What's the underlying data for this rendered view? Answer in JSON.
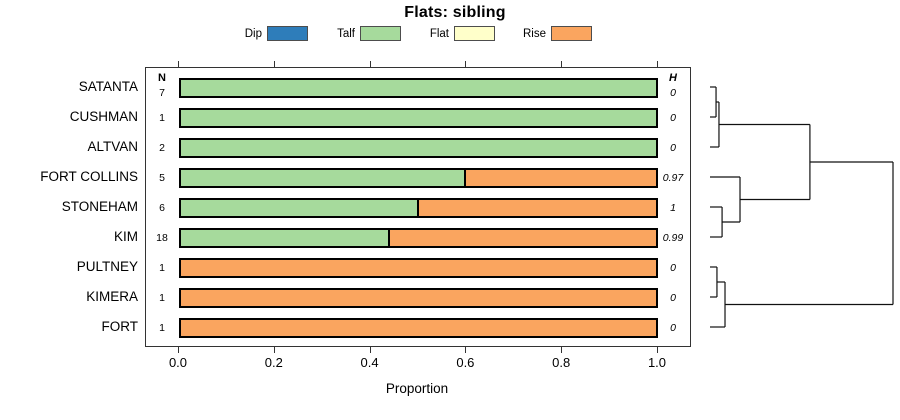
{
  "title": "Flats: sibling",
  "legend": {
    "items": [
      {
        "label": "Dip",
        "color": "#2e7dba"
      },
      {
        "label": "Talf",
        "color": "#a6da9c"
      },
      {
        "label": "Flat",
        "color": "#ffffca"
      },
      {
        "label": "Rise",
        "color": "#faa55f"
      }
    ]
  },
  "chart_data": {
    "type": "bar",
    "subtype": "horizontal-stacked-proportion",
    "title": "Flats: sibling",
    "categories": [
      "SATANTA",
      "CUSHMAN",
      "ALTVAN",
      "FORT COLLINS",
      "STONEHAM",
      "KIM",
      "PULTNEY",
      "KIMERA",
      "FORT"
    ],
    "n_header": "N",
    "h_header": "H",
    "n_values": [
      7,
      1,
      2,
      5,
      6,
      18,
      1,
      1,
      1
    ],
    "h_values": [
      "0",
      "0",
      "0",
      "0.97",
      "1",
      "0.99",
      "0",
      "0",
      "0"
    ],
    "series": [
      {
        "name": "Talf",
        "color": "#a6da9c",
        "values": [
          1,
          1,
          1,
          0.6,
          0.5,
          0.44,
          0,
          0,
          0
        ]
      },
      {
        "name": "Rise",
        "color": "#faa55f",
        "values": [
          0,
          0,
          0,
          0.4,
          0.5,
          0.56,
          1,
          1,
          1
        ]
      }
    ],
    "xlabel": "Proportion",
    "xlim": [
      0,
      1
    ],
    "xticks": [
      "0.0",
      "0.2",
      "0.4",
      "0.6",
      "0.8",
      "1.0"
    ],
    "legend_position": "top",
    "grid": false
  },
  "dendrogram": {
    "orientation": "right",
    "leaf_order": [
      "SATANTA",
      "CUSHMAN",
      "ALTVAN",
      "FORT COLLINS",
      "STONEHAM",
      "KIM",
      "PULTNEY",
      "KIMERA",
      "FORT"
    ],
    "tree": {
      "h": 1,
      "children": [
        {
          "h": 0.546,
          "children": [
            {
              "h": 0.049,
              "children": [
                {
                  "h": 0.033,
                  "children": [
                    {
                      "leaf": 0
                    },
                    {
                      "leaf": 1
                    }
                  ]
                },
                {
                  "leaf": 2
                }
              ]
            },
            {
              "h": 0.164,
              "children": [
                {
                  "leaf": 3
                },
                {
                  "h": 0.066,
                  "children": [
                    {
                      "leaf": 4
                    },
                    {
                      "leaf": 5
                    }
                  ]
                }
              ]
            }
          ]
        },
        {
          "h": 0.082,
          "children": [
            {
              "h": 0.038,
              "children": [
                {
                  "leaf": 6
                },
                {
                  "leaf": 7
                }
              ]
            },
            {
              "leaf": 8
            }
          ]
        }
      ]
    }
  }
}
